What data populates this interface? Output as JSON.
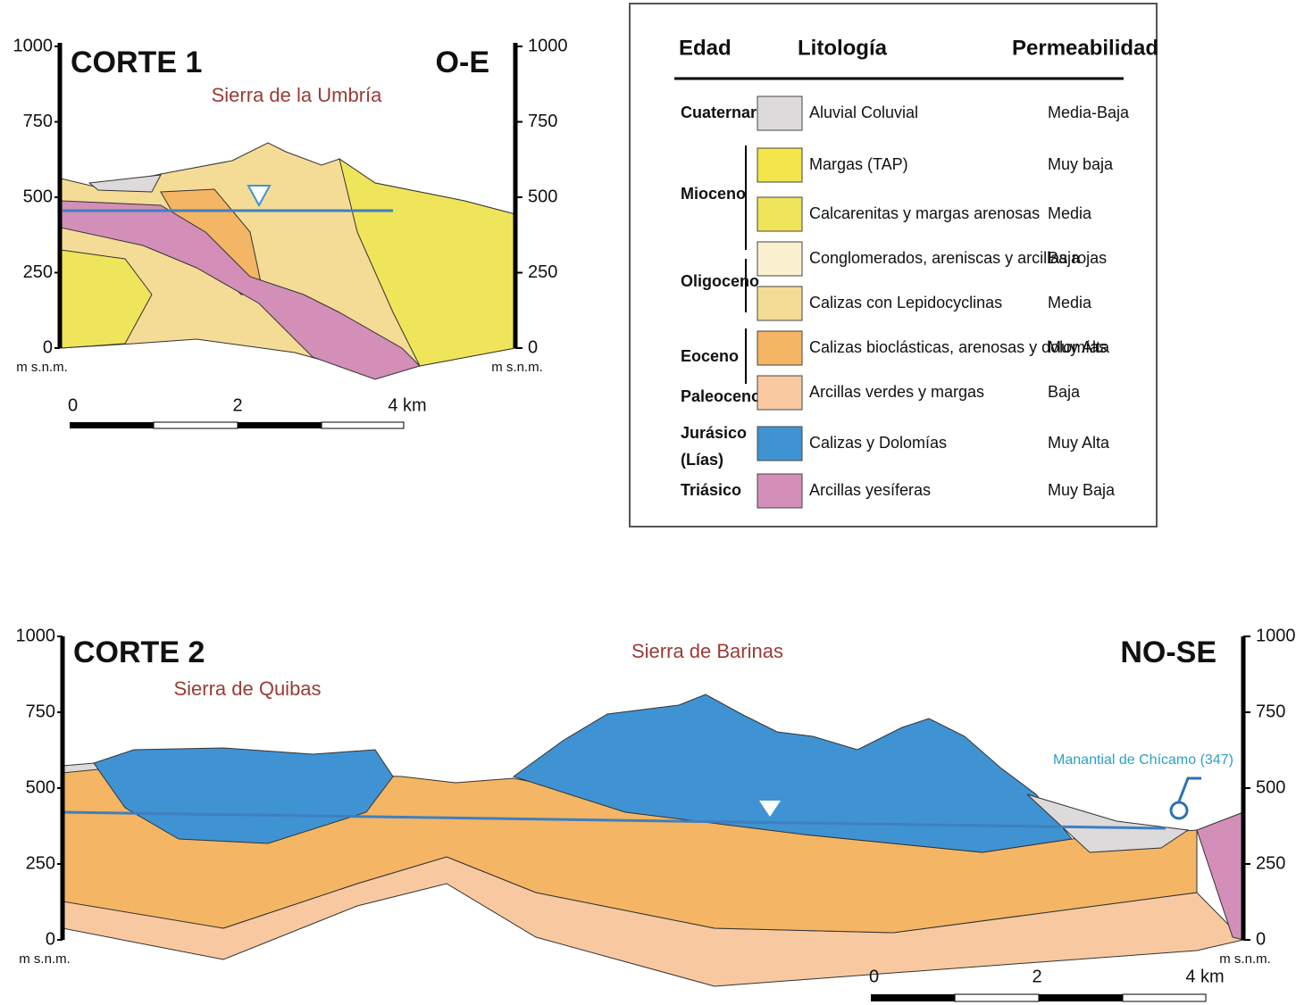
{
  "section1": {
    "title": "CORTE 1",
    "orientation": "O-E",
    "place": "Sierra de la Umbría",
    "axis_left": [
      "1000",
      "750",
      "500",
      "250",
      "0"
    ],
    "axis_right": [
      "1000",
      "750",
      "500",
      "250",
      "0"
    ],
    "unit_left": "m s.n.m.",
    "unit_right": "m s.n.m.",
    "scale": [
      "0",
      "2",
      "4 km"
    ]
  },
  "legend": {
    "headers": [
      "Edad",
      "Litología",
      "Permeabilidad"
    ],
    "ages": [
      "Cuaternario",
      "Mioceno",
      "Oligoceno",
      "Eoceno",
      "Paleoceno",
      "Jurásico",
      "(Lías)",
      "Triásico"
    ],
    "rows": [
      {
        "lithology": "Aluvial Coluvial",
        "permeability": "Media-Baja",
        "color": "#dcdadb"
      },
      {
        "lithology": "Margas (TAP)",
        "permeability": "Muy baja",
        "color": "#f2e64a"
      },
      {
        "lithology": "Calcarenitas y margas arenosas",
        "permeability": "Media",
        "color": "#efe55a"
      },
      {
        "lithology": "Conglomerados, areniscas y arcillas rojas",
        "permeability": "Baja",
        "color": "#fbf0cf"
      },
      {
        "lithology": "Calizas con Lepidocyclinas",
        "permeability": "Media",
        "color": "#f5dc96"
      },
      {
        "lithology": "Calizas bioclásticas, arenosas y dolomías",
        "permeability": "Muy Alta",
        "color": "#f4b564"
      },
      {
        "lithology": "Arcillas verdes y margas",
        "permeability": "Baja",
        "color": "#f8c9a0"
      },
      {
        "lithology": "Calizas y Dolomías",
        "permeability": "Muy Alta",
        "color": "#3f93d2"
      },
      {
        "lithology": "Arcillas yesíferas",
        "permeability": "Muy Baja",
        "color": "#d38fb8"
      }
    ]
  },
  "section2": {
    "title": "CORTE 2",
    "orientation": "NO-SE",
    "places": [
      "Sierra de Quibas",
      "Sierra de Barinas"
    ],
    "spring": "Manantial de Chícamo (347)",
    "axis_left": [
      "1000",
      "750",
      "500",
      "250",
      "0"
    ],
    "axis_right": [
      "1000",
      "750",
      "500",
      "250",
      "0"
    ],
    "unit_left": "m s.n.m.",
    "unit_right": "m s.n.m.",
    "scale": [
      "0",
      "2",
      "4 km"
    ]
  }
}
